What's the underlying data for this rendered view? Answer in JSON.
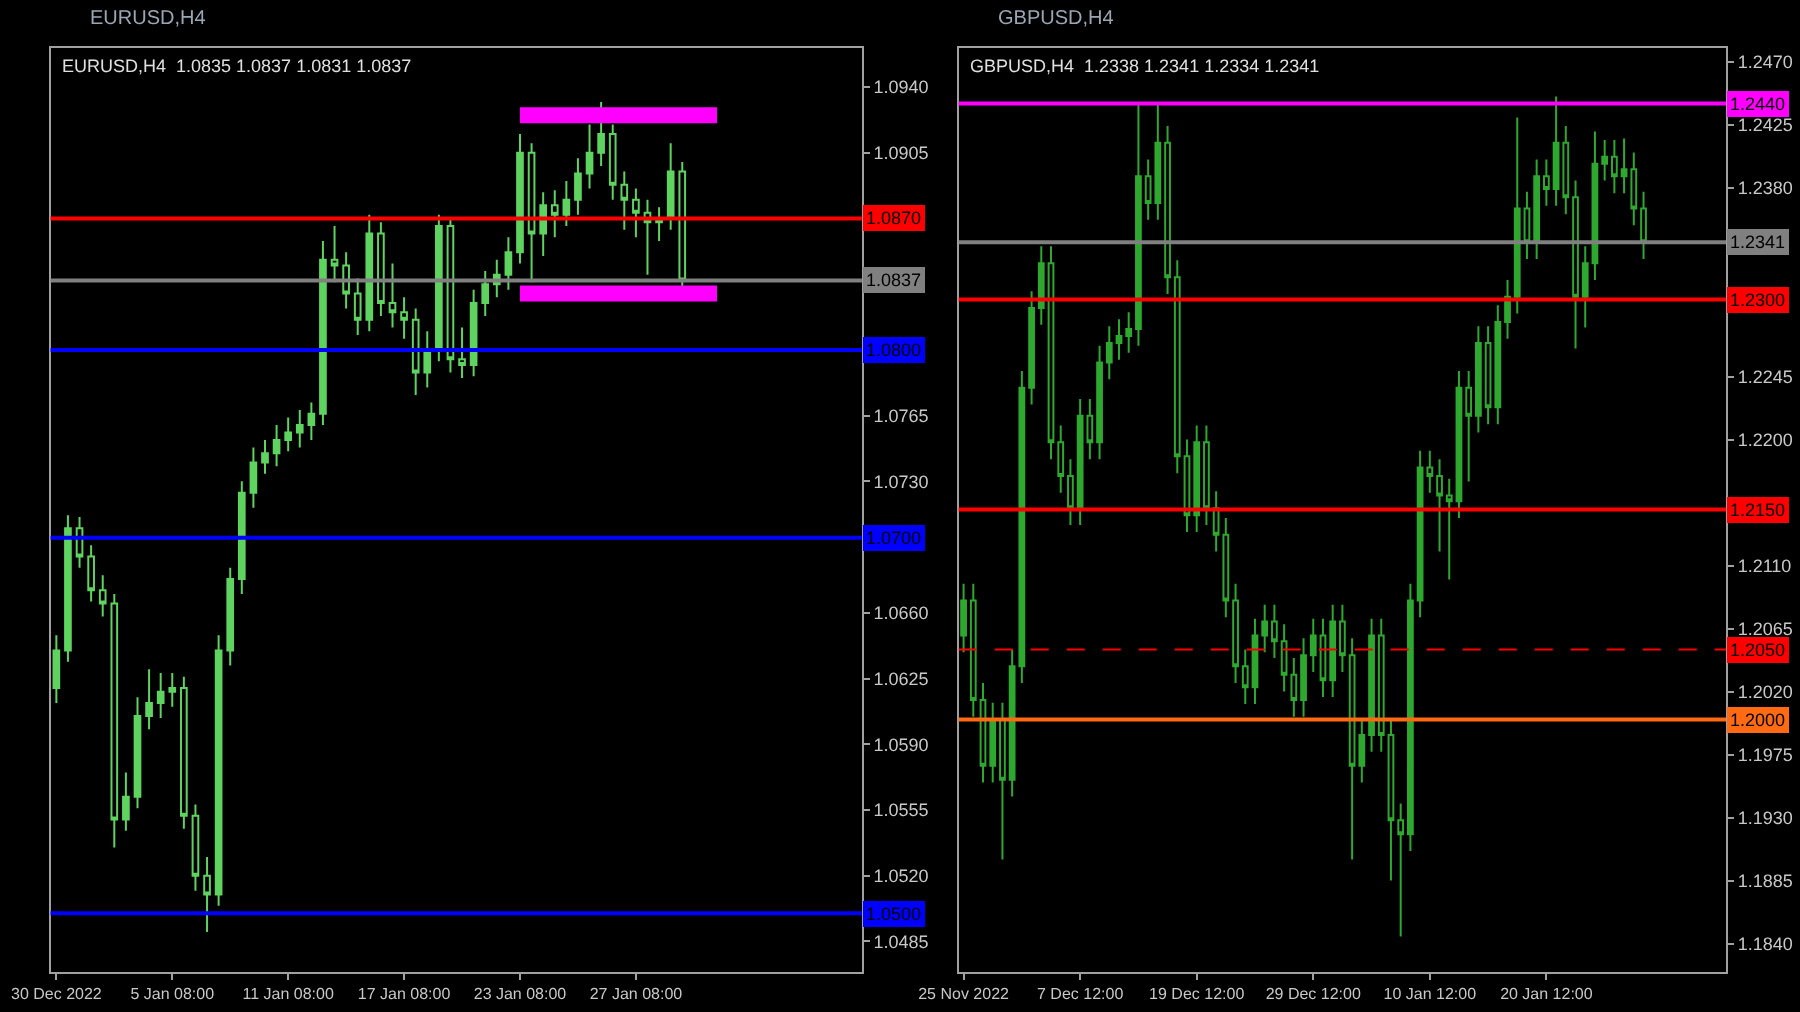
{
  "chart_data": [
    {
      "type": "candlestick",
      "title": "EURUSD,H4",
      "subtitle": "EURUSD,H4  1.0835 1.0837 1.0831 1.0837",
      "color": "#5fd35f",
      "categories": [
        "30 Dec 2022",
        null,
        null,
        null,
        null,
        null,
        null,
        null,
        null,
        null,
        "5 Jan 08:00",
        null,
        null,
        null,
        null,
        null,
        null,
        null,
        null,
        null,
        "11 Jan 08:00",
        null,
        null,
        null,
        null,
        null,
        null,
        null,
        null,
        null,
        "17 Jan 08:00",
        null,
        null,
        null,
        null,
        null,
        null,
        null,
        null,
        null,
        "23 Jan 08:00",
        null,
        null,
        null,
        null,
        null,
        null,
        null,
        null,
        null,
        "27 Jan 08:00",
        null,
        null,
        null,
        null,
        null,
        null,
        null,
        null,
        null,
        null,
        null,
        null,
        null,
        null,
        null,
        null,
        null,
        null,
        null
      ],
      "ohlc": [
        [
          1.062,
          1.0648,
          1.0612,
          1.064
        ],
        [
          1.064,
          1.0712,
          1.0634,
          1.0705
        ],
        [
          1.0705,
          1.0711,
          1.0684,
          1.069
        ],
        [
          1.069,
          1.0696,
          1.0666,
          1.0672
        ],
        [
          1.0672,
          1.068,
          1.0658,
          1.0665
        ],
        [
          1.0665,
          1.067,
          1.0535,
          1.055
        ],
        [
          1.055,
          1.0575,
          1.0544,
          1.0562
        ],
        [
          1.0562,
          1.0615,
          1.0556,
          1.0605
        ],
        [
          1.0605,
          1.063,
          1.0598,
          1.0612
        ],
        [
          1.0612,
          1.0628,
          1.0604,
          1.0618
        ],
        [
          1.0618,
          1.0628,
          1.061,
          1.062
        ],
        [
          1.062,
          1.0626,
          1.0545,
          1.0552
        ],
        [
          1.0552,
          1.0558,
          1.0512,
          1.052
        ],
        [
          1.052,
          1.053,
          1.049,
          1.051
        ],
        [
          1.051,
          1.0648,
          1.0504,
          1.064
        ],
        [
          1.064,
          1.0684,
          1.0632,
          1.0678
        ],
        [
          1.0678,
          1.073,
          1.067,
          1.0724
        ],
        [
          1.0724,
          1.0748,
          1.0716,
          1.074
        ],
        [
          1.074,
          1.0752,
          1.0734,
          1.0745
        ],
        [
          1.0745,
          1.076,
          1.0738,
          1.0752
        ],
        [
          1.0752,
          1.0764,
          1.0746,
          1.0756
        ],
        [
          1.0756,
          1.0768,
          1.0748,
          1.076
        ],
        [
          1.076,
          1.0772,
          1.0752,
          1.0766
        ],
        [
          1.0766,
          1.0858,
          1.076,
          1.0848
        ],
        [
          1.0848,
          1.0866,
          1.0836,
          1.0845
        ],
        [
          1.0845,
          1.0852,
          1.0822,
          1.083
        ],
        [
          1.083,
          1.0838,
          1.0808,
          1.0816
        ],
        [
          1.0816,
          1.0872,
          1.081,
          1.0862
        ],
        [
          1.0862,
          1.0868,
          1.0818,
          1.0825
        ],
        [
          1.0825,
          1.0846,
          1.0812,
          1.082
        ],
        [
          1.082,
          1.0828,
          1.0806,
          1.0816
        ],
        [
          1.0816,
          1.0822,
          1.0776,
          1.0788
        ],
        [
          1.0788,
          1.081,
          1.078,
          1.08
        ],
        [
          1.08,
          1.0872,
          1.0794,
          1.0866
        ],
        [
          1.0866,
          1.087,
          1.0788,
          1.0795
        ],
        [
          1.0795,
          1.0812,
          1.0785,
          1.0792
        ],
        [
          1.0792,
          1.0832,
          1.0786,
          1.0825
        ],
        [
          1.0825,
          1.0842,
          1.0818,
          1.0835
        ],
        [
          1.0835,
          1.0848,
          1.0828,
          1.084
        ],
        [
          1.084,
          1.086,
          1.0832,
          1.0852
        ],
        [
          1.0852,
          1.0915,
          1.0846,
          1.0905
        ],
        [
          1.0905,
          1.091,
          1.0836,
          1.0862
        ],
        [
          1.0862,
          1.0884,
          1.085,
          1.0877
        ],
        [
          1.0877,
          1.0885,
          1.086,
          1.0872
        ],
        [
          1.0872,
          1.089,
          1.0866,
          1.088
        ],
        [
          1.088,
          1.0902,
          1.0872,
          1.0894
        ],
        [
          1.0894,
          1.092,
          1.0886,
          1.0905
        ],
        [
          1.0905,
          1.0932,
          1.0898,
          1.0915
        ],
        [
          1.0915,
          1.092,
          1.088,
          1.0888
        ],
        [
          1.0888,
          1.0895,
          1.0864,
          1.088
        ],
        [
          1.088,
          1.0886,
          1.086,
          1.0873
        ],
        [
          1.0873,
          1.088,
          1.084,
          1.0868
        ],
        [
          1.0868,
          1.0876,
          1.0858,
          1.087
        ],
        [
          1.087,
          1.091,
          1.0864,
          1.0895
        ],
        [
          1.0895,
          1.09,
          1.0831,
          1.0837
        ],
        null,
        null,
        null,
        null,
        null,
        null,
        null,
        null,
        null,
        null,
        null,
        null,
        null,
        null,
        null
      ],
      "series": [
        {
          "type": "line",
          "color": "#ff00ff",
          "values": [
            null,
            null,
            null,
            null,
            null,
            null,
            null,
            null,
            null,
            null,
            null,
            null,
            null,
            null,
            null,
            null,
            null,
            null,
            null,
            null,
            null,
            null,
            null,
            null,
            null,
            null,
            null,
            null,
            null,
            null,
            null,
            null,
            null,
            null,
            null,
            null,
            null,
            null,
            null,
            null,
            1.0925,
            1.0925,
            1.0925,
            1.0925,
            1.0925,
            1.0925,
            1.0925,
            1.0925,
            1.0925,
            1.0925,
            1.0925,
            1.0925,
            1.0925,
            1.0925,
            1.0925,
            1.0925,
            1.0925,
            1.0925,
            null,
            null,
            null,
            null,
            null,
            null,
            null,
            null,
            null,
            null,
            null,
            null
          ]
        },
        {
          "type": "line",
          "color": "#ff00ff",
          "values": [
            null,
            null,
            null,
            null,
            null,
            null,
            null,
            null,
            null,
            null,
            null,
            null,
            null,
            null,
            null,
            null,
            null,
            null,
            null,
            null,
            null,
            null,
            null,
            null,
            null,
            null,
            null,
            null,
            null,
            null,
            null,
            null,
            null,
            null,
            null,
            null,
            null,
            null,
            null,
            null,
            1.083,
            1.083,
            1.083,
            1.083,
            1.083,
            1.083,
            1.083,
            1.083,
            1.083,
            1.083,
            1.083,
            1.083,
            1.083,
            1.083,
            1.083,
            1.083,
            1.083,
            1.083,
            null,
            null,
            null,
            null,
            null,
            null,
            null,
            null,
            null,
            null,
            null,
            null
          ]
        }
      ],
      "ylim": [
        1.0469,
        1.0961
      ],
      "yticks": [
        {
          "value": 1.0485,
          "label": "1.0485"
        },
        {
          "value": 1.052,
          "label": "1.0520"
        },
        {
          "value": 1.0555,
          "label": "1.0555"
        },
        {
          "value": 1.059,
          "label": "1.0590"
        },
        {
          "value": 1.0625,
          "label": "1.0625"
        },
        {
          "value": 1.066,
          "label": "1.0660"
        },
        {
          "value": 1.073,
          "label": "1.0730"
        },
        {
          "value": 1.0765,
          "label": "1.0765"
        },
        {
          "value": 1.0905,
          "label": "1.0905"
        },
        {
          "value": 1.094,
          "label": "1.0940"
        }
      ],
      "ref_lines": [
        {
          "axis": "y",
          "value": 1.087,
          "label": "1.0870",
          "color": "#ff0000"
        },
        {
          "axis": "y",
          "value": 1.0837,
          "label": "1.0837",
          "color": "#808080"
        },
        {
          "axis": "y",
          "value": 1.08,
          "label": "1.0800",
          "color": "#0000ff"
        },
        {
          "axis": "y",
          "value": 1.07,
          "label": "1.0700",
          "color": "#0000ff"
        },
        {
          "axis": "y",
          "value": 1.05,
          "label": "1.0500",
          "color": "#0000ff"
        }
      ]
    },
    {
      "type": "candlestick",
      "title": "GBPUSD,H4",
      "subtitle": "GBPUSD,H4  1.2338 1.2341 1.2334 1.2341",
      "color": "#2ea82e",
      "categories": [
        "25 Nov 2022",
        null,
        null,
        null,
        null,
        null,
        null,
        null,
        null,
        null,
        null,
        null,
        "7 Dec 12:00",
        null,
        null,
        null,
        null,
        null,
        null,
        null,
        null,
        null,
        null,
        null,
        "19 Dec 12:00",
        null,
        null,
        null,
        null,
        null,
        null,
        null,
        null,
        null,
        null,
        null,
        "29 Dec 12:00",
        null,
        null,
        null,
        null,
        null,
        null,
        null,
        null,
        null,
        null,
        null,
        "10 Jan 12:00",
        null,
        null,
        null,
        null,
        null,
        null,
        null,
        null,
        null,
        null,
        null,
        "20 Jan 12:00",
        null,
        null,
        null,
        null,
        null,
        null,
        null,
        null,
        null,
        null,
        null,
        null,
        null,
        null,
        null,
        null,
        null,
        null
      ],
      "ohlc": [
        [
          1.206,
          1.2097,
          1.2048,
          1.2085
        ],
        [
          1.2085,
          1.2097,
          1.2002,
          1.2014
        ],
        [
          1.2014,
          1.2026,
          1.1955,
          1.1967
        ],
        [
          1.1967,
          1.2012,
          1.1955,
          1.2
        ],
        [
          1.2,
          1.2012,
          1.19,
          1.1957
        ],
        [
          1.1957,
          1.205,
          1.1945,
          1.2038
        ],
        [
          1.2038,
          1.2249,
          1.2026,
          1.2237
        ],
        [
          1.2237,
          1.2306,
          1.2225,
          1.2294
        ],
        [
          1.2294,
          1.2338,
          1.2282,
          1.2326
        ],
        [
          1.2326,
          1.2338,
          1.2186,
          1.2198
        ],
        [
          1.2198,
          1.221,
          1.2162,
          1.2174
        ],
        [
          1.2174,
          1.2186,
          1.2139,
          1.2151
        ],
        [
          1.2151,
          1.2229,
          1.2139,
          1.2217
        ],
        [
          1.2217,
          1.2229,
          1.2186,
          1.2198
        ],
        [
          1.2198,
          1.2267,
          1.2186,
          1.2255
        ],
        [
          1.2255,
          1.2281,
          1.2243,
          1.2269
        ],
        [
          1.2269,
          1.2286,
          1.2257,
          1.2274
        ],
        [
          1.2274,
          1.2291,
          1.2262,
          1.2279
        ],
        [
          1.2279,
          1.244,
          1.2267,
          1.2388
        ],
        [
          1.2388,
          1.24,
          1.2357,
          1.2369
        ],
        [
          1.2369,
          1.244,
          1.2357,
          1.2412
        ],
        [
          1.2412,
          1.2424,
          1.2304,
          1.2316
        ],
        [
          1.2316,
          1.2328,
          1.2176,
          1.2188
        ],
        [
          1.2188,
          1.22,
          1.2134,
          1.2146
        ],
        [
          1.2146,
          1.221,
          1.2134,
          1.2198
        ],
        [
          1.2198,
          1.221,
          1.2139,
          1.2151
        ],
        [
          1.2151,
          1.2163,
          1.212,
          1.2132
        ],
        [
          1.2132,
          1.2144,
          1.2073,
          1.2085
        ],
        [
          1.2085,
          1.2097,
          1.2026,
          1.2038
        ],
        [
          1.2038,
          1.205,
          1.2011,
          1.2023
        ],
        [
          1.2023,
          1.2072,
          1.2011,
          1.206
        ],
        [
          1.206,
          1.2082,
          1.2048,
          1.207
        ],
        [
          1.207,
          1.2082,
          1.2044,
          1.2056
        ],
        [
          1.2056,
          1.2068,
          1.202,
          1.2032
        ],
        [
          1.2032,
          1.2044,
          1.2002,
          1.2014
        ],
        [
          1.2014,
          1.2058,
          1.2002,
          1.2046
        ],
        [
          1.2046,
          1.2072,
          1.2034,
          1.206
        ],
        [
          1.206,
          1.2072,
          1.2016,
          1.2028
        ],
        [
          1.2028,
          1.2082,
          1.2016,
          1.207
        ],
        [
          1.207,
          1.2082,
          1.2034,
          1.2046
        ],
        [
          1.2046,
          1.2058,
          1.19,
          1.1967
        ],
        [
          1.1967,
          1.2001,
          1.1955,
          1.1989
        ],
        [
          1.1989,
          1.2072,
          1.1977,
          1.206
        ],
        [
          1.206,
          1.2072,
          1.1977,
          1.1989
        ],
        [
          1.1989,
          1.2001,
          1.1885,
          1.1928
        ],
        [
          1.1928,
          1.194,
          1.1845,
          1.1918
        ],
        [
          1.1918,
          1.2097,
          1.1906,
          1.2085
        ],
        [
          1.2085,
          1.2192,
          1.2073,
          1.218
        ],
        [
          1.218,
          1.2192,
          1.2162,
          1.2174
        ],
        [
          1.2174,
          1.2186,
          1.212,
          1.216
        ],
        [
          1.216,
          1.2172,
          1.21,
          1.2156
        ],
        [
          1.2156,
          1.2249,
          1.2144,
          1.2237
        ],
        [
          1.2237,
          1.2249,
          1.217,
          1.2217
        ],
        [
          1.2217,
          1.2281,
          1.2205,
          1.2269
        ],
        [
          1.2269,
          1.2281,
          1.2211,
          1.2223
        ],
        [
          1.2223,
          1.2296,
          1.2211,
          1.2284
        ],
        [
          1.2284,
          1.2314,
          1.2272,
          1.2302
        ],
        [
          1.2302,
          1.243,
          1.229,
          1.2365
        ],
        [
          1.2365,
          1.2377,
          1.2329,
          1.2341
        ],
        [
          1.2341,
          1.24,
          1.2329,
          1.2388
        ],
        [
          1.2388,
          1.24,
          1.2367,
          1.2379
        ],
        [
          1.2379,
          1.2445,
          1.2367,
          1.2412
        ],
        [
          1.2412,
          1.2424,
          1.2361,
          1.2373
        ],
        [
          1.2373,
          1.2385,
          1.2265,
          1.2302
        ],
        [
          1.2302,
          1.2338,
          1.228,
          1.2326
        ],
        [
          1.2326,
          1.242,
          1.2314,
          1.2397
        ],
        [
          1.2397,
          1.2414,
          1.2385,
          1.2402
        ],
        [
          1.2402,
          1.2414,
          1.2376,
          1.2388
        ],
        [
          1.2388,
          1.2415,
          1.2376,
          1.2393
        ],
        [
          1.2393,
          1.2405,
          1.2353,
          1.2365
        ],
        [
          1.2365,
          1.2377,
          1.2329,
          1.2341
        ],
        null,
        null,
        null,
        null,
        null,
        null,
        null,
        null
      ],
      "ylim": [
        1.182,
        1.248
      ],
      "yticks": [
        {
          "value": 1.184,
          "label": "1.1840"
        },
        {
          "value": 1.1885,
          "label": "1.1885"
        },
        {
          "value": 1.193,
          "label": "1.1930"
        },
        {
          "value": 1.1975,
          "label": "1.1975"
        },
        {
          "value": 1.202,
          "label": "1.2020"
        },
        {
          "value": 1.2065,
          "label": "1.2065"
        },
        {
          "value": 1.211,
          "label": "1.2110"
        },
        {
          "value": 1.22,
          "label": "1.2200"
        },
        {
          "value": 1.2245,
          "label": "1.2245"
        },
        {
          "value": 1.238,
          "label": "1.2380"
        },
        {
          "value": 1.2425,
          "label": "1.2425"
        },
        {
          "value": 1.247,
          "label": "1.2470"
        }
      ],
      "ref_lines": [
        {
          "axis": "y",
          "value": 1.244,
          "label": "1.2440",
          "color": "#ff00ff"
        },
        {
          "axis": "y",
          "value": 1.2341,
          "label": "1.2341",
          "color": "#808080"
        },
        {
          "axis": "y",
          "value": 1.23,
          "label": "1.2300",
          "color": "#ff0000"
        },
        {
          "axis": "y",
          "value": 1.215,
          "label": "1.2150",
          "color": "#ff0000"
        },
        {
          "axis": "y",
          "value": 1.205,
          "label": "1.2050",
          "color": "#ff0000",
          "line_style": "dashed"
        },
        {
          "axis": "y",
          "value": 1.2,
          "label": "1.2000",
          "color": "#ff6a13"
        }
      ]
    }
  ]
}
